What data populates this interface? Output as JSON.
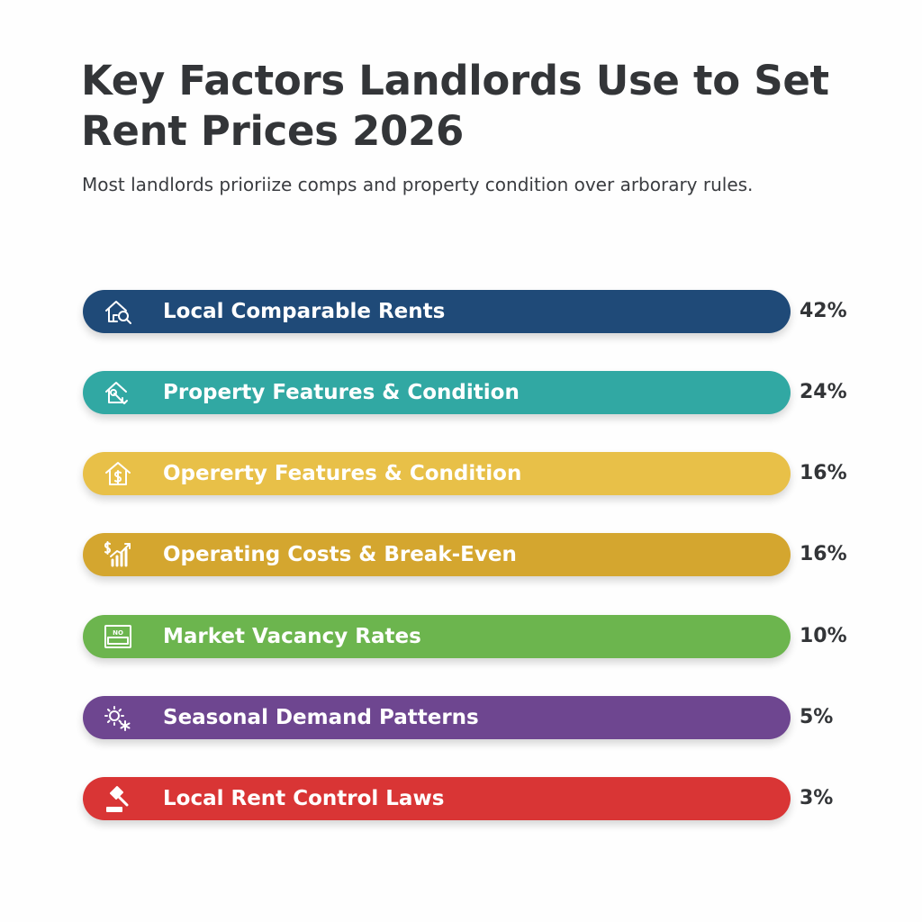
{
  "chart_data": {
    "type": "bar",
    "orientation": "horizontal",
    "title": "Key Factors Landlords Use to Set Rent Prices 2026",
    "subtitle": "Most landlords prioriize comps and property condition over arborary rules.",
    "categories": [
      "Local Comparable Rents",
      "Property Features & Condition",
      "Opererty Features & Condition",
      "Operating Costs & Break-Even",
      "Market Vacancy Rates",
      "Seasonal Demand Patterns",
      "Local Rent Control Laws"
    ],
    "values": [
      42,
      24,
      16,
      16,
      10,
      5,
      3
    ],
    "value_labels": [
      "42%",
      "24%",
      "16%",
      "16%",
      "10%",
      "5%",
      "3%"
    ],
    "colors": [
      "#1f4a78",
      "#31a8a3",
      "#e8c048",
      "#d4a62f",
      "#6cb54e",
      "#6e4690",
      "#d93535"
    ],
    "icons": [
      "house-magnifier-icon",
      "house-wrench-icon",
      "house-dollar-icon",
      "dollar-growth-chart-icon",
      "no-vacancy-sign-icon",
      "sun-snowflake-icon",
      "gavel-icon"
    ],
    "value_unit": "%",
    "grid": false,
    "legend": "none",
    "xlabel": "",
    "ylabel": ""
  }
}
